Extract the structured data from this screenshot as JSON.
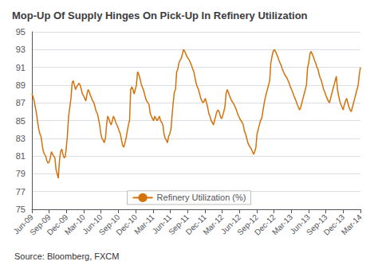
{
  "chart_data": {
    "type": "line",
    "title": "Mop-Up Of Supply Hinges On Pick-Up In Refinery Utilization",
    "annotations": [
      "Source: Bloomberg, FXCM"
    ],
    "legend": "bottom",
    "grid": true,
    "xlim": [
      0,
      19
    ],
    "xticks": [
      {
        "value": 0,
        "label": "Jun-09"
      },
      {
        "value": 1,
        "label": "Sep-09"
      },
      {
        "value": 2,
        "label": "Dec-09"
      },
      {
        "value": 3,
        "label": "Mar-10"
      },
      {
        "value": 4,
        "label": "Jun-10"
      },
      {
        "value": 5,
        "label": "Sep-10"
      },
      {
        "value": 6,
        "label": "Dec-10"
      },
      {
        "value": 7,
        "label": "Mar-11"
      },
      {
        "value": 8,
        "label": "Jun-11"
      },
      {
        "value": 9,
        "label": "Sep-11"
      },
      {
        "value": 10,
        "label": "Dec-11"
      },
      {
        "value": 11,
        "label": "Mar-12"
      },
      {
        "value": 12,
        "label": "Jun-12"
      },
      {
        "value": 13,
        "label": "Sep-12"
      },
      {
        "value": 14,
        "label": "Dec-12"
      },
      {
        "value": 15,
        "label": "Mar-13"
      },
      {
        "value": 16,
        "label": "Jun-13"
      },
      {
        "value": 17,
        "label": "Sep-13"
      },
      {
        "value": 18,
        "label": "Dec-13"
      },
      {
        "value": 19,
        "label": "Mar-14"
      }
    ],
    "ylim": [
      75,
      95
    ],
    "yticks": [
      75,
      77,
      79,
      81,
      83,
      85,
      87,
      89,
      91,
      93,
      95
    ],
    "series": [
      {
        "name": "Refinery Utilization (%)",
        "color": "#D4720A",
        "values": [
          88.0,
          87.7,
          87.2,
          86.5,
          85.8,
          84.8,
          84.0,
          83.5,
          83.2,
          82.2,
          81.5,
          81.2,
          81.0,
          80.5,
          80.2,
          80.3,
          80.8,
          81.5,
          81.2,
          81.0,
          80.8,
          79.5,
          79.0,
          78.5,
          80.5,
          81.5,
          81.8,
          81.2,
          80.8,
          80.9,
          82.0,
          83.5,
          85.5,
          86.5,
          87.5,
          89.2,
          89.5,
          89.0,
          88.5,
          88.8,
          89.0,
          89.2,
          89.0,
          88.5,
          88.0,
          87.8,
          87.5,
          87.2,
          88.0,
          88.5,
          88.2,
          87.8,
          87.5,
          87.2,
          87.0,
          86.5,
          86.0,
          85.8,
          85.2,
          84.5,
          83.5,
          83.0,
          82.8,
          82.5,
          83.0,
          84.5,
          85.5,
          85.2,
          84.8,
          84.5,
          85.0,
          85.5,
          85.2,
          84.8,
          84.5,
          84.2,
          83.8,
          83.5,
          82.8,
          82.2,
          82.0,
          82.5,
          83.0,
          83.8,
          84.5,
          85.0,
          88.5,
          88.8,
          88.5,
          88.0,
          88.5,
          89.0,
          90.5,
          90.2,
          89.8,
          89.2,
          88.8,
          88.5,
          88.0,
          87.5,
          87.2,
          87.0,
          86.8,
          85.8,
          85.5,
          85.2,
          85.0,
          85.5,
          85.2,
          85.0,
          85.2,
          85.5,
          85.0,
          84.8,
          84.5,
          83.5,
          83.0,
          82.8,
          82.5,
          83.2,
          83.5,
          84.0,
          85.5,
          87.0,
          88.2,
          88.5,
          90.5,
          90.8,
          91.5,
          91.8,
          92.0,
          92.5,
          93.0,
          92.8,
          92.5,
          92.2,
          92.0,
          91.8,
          91.5,
          91.2,
          90.8,
          90.5,
          89.8,
          89.2,
          88.8,
          88.5,
          88.0,
          87.5,
          87.2,
          87.0,
          87.2,
          87.5,
          87.0,
          86.5,
          85.8,
          85.5,
          85.0,
          84.8,
          84.5,
          85.0,
          85.5,
          86.0,
          86.2,
          86.0,
          85.5,
          85.2,
          85.5,
          86.0,
          86.5,
          88.0,
          88.5,
          88.2,
          87.8,
          87.5,
          87.2,
          87.0,
          86.8,
          86.5,
          86.2,
          85.8,
          85.5,
          85.2,
          85.0,
          84.8,
          84.5,
          83.8,
          83.5,
          83.0,
          82.5,
          82.2,
          82.0,
          81.8,
          81.5,
          81.2,
          81.5,
          82.0,
          83.5,
          84.0,
          84.5,
          85.0,
          85.2,
          86.0,
          86.8,
          87.5,
          88.0,
          88.5,
          89.0,
          89.5,
          91.5,
          92.2,
          92.8,
          93.0,
          92.8,
          92.5,
          92.2,
          91.8,
          91.5,
          91.2,
          90.8,
          90.5,
          90.2,
          90.0,
          89.8,
          89.5,
          89.2,
          88.8,
          88.5,
          88.2,
          87.8,
          87.5,
          87.2,
          86.8,
          86.5,
          86.2,
          86.5,
          87.0,
          87.5,
          88.0,
          88.5,
          89.0,
          91.0,
          91.5,
          92.5,
          92.8,
          92.5,
          92.2,
          91.8,
          91.5,
          91.0,
          90.8,
          90.2,
          89.8,
          89.5,
          89.0,
          88.5,
          88.2,
          87.8,
          87.5,
          87.2,
          87.0,
          87.5,
          88.0,
          88.5,
          89.0,
          89.5,
          90.0,
          88.5,
          87.8,
          87.2,
          86.8,
          86.5,
          86.2,
          86.8,
          87.2,
          87.5,
          87.0,
          86.5,
          86.2,
          86.0,
          86.5,
          87.0,
          87.5,
          88.0,
          88.5,
          89.0,
          90.2,
          91.0
        ]
      }
    ]
  }
}
